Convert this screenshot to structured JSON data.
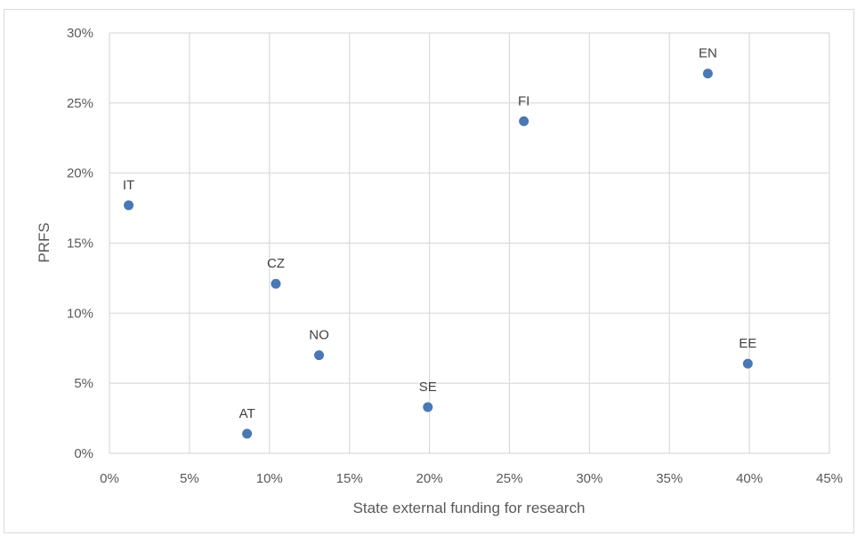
{
  "chart_data": {
    "type": "scatter",
    "title": "",
    "xlabel": "State external funding for research",
    "ylabel": "PRFS",
    "xlim": [
      0,
      0.45
    ],
    "ylim": [
      0,
      0.3
    ],
    "x_ticks": [
      0,
      0.05,
      0.1,
      0.15,
      0.2,
      0.25,
      0.3,
      0.35,
      0.4,
      0.45
    ],
    "x_tick_labels": [
      "0%",
      "5%",
      "10%",
      "15%",
      "20%",
      "25%",
      "30%",
      "35%",
      "40%",
      "45%"
    ],
    "y_ticks": [
      0,
      0.05,
      0.1,
      0.15,
      0.2,
      0.25,
      0.3
    ],
    "y_tick_labels": [
      "0%",
      "5%",
      "10%",
      "15%",
      "20%",
      "25%",
      "30%"
    ],
    "grid": true,
    "marker_color": "#4a78b5",
    "points": [
      {
        "label": "IT",
        "x": 0.012,
        "y": 0.177
      },
      {
        "label": "CZ",
        "x": 0.104,
        "y": 0.121
      },
      {
        "label": "NO",
        "x": 0.131,
        "y": 0.07
      },
      {
        "label": "AT",
        "x": 0.086,
        "y": 0.014
      },
      {
        "label": "SE",
        "x": 0.199,
        "y": 0.033
      },
      {
        "label": "FI",
        "x": 0.259,
        "y": 0.237
      },
      {
        "label": "EN",
        "x": 0.374,
        "y": 0.271
      },
      {
        "label": "EE",
        "x": 0.399,
        "y": 0.064
      }
    ]
  }
}
